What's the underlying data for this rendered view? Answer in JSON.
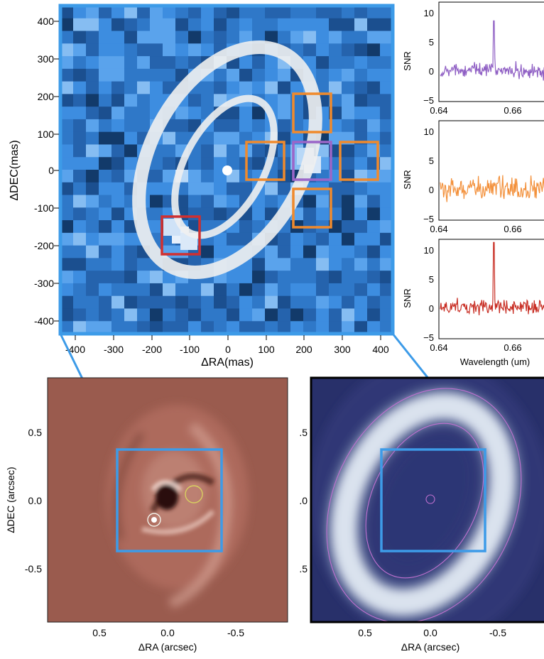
{
  "main_panel": {
    "xlabel": "ΔRA(mas)",
    "ylabel": "ΔDEC(mas)",
    "ticks": [
      400,
      300,
      200,
      100,
      0,
      -100,
      -200,
      -300,
      -400
    ],
    "x_tick_labels": [
      "-400",
      "-300",
      "-200",
      "-100",
      "0",
      "100",
      "200",
      "300",
      "400"
    ],
    "y_tick_labels": [
      "400",
      "300",
      "200",
      "100",
      "0",
      "-100",
      "-200",
      "-300",
      "-400"
    ],
    "colors": {
      "frame": "#3d9be8",
      "star": "#ffffff",
      "ring": "#f0f0f0"
    },
    "apertures": [
      {
        "id": "north",
        "color": "#f08a2c"
      },
      {
        "id": "west-inner",
        "color": "#f08a2c"
      },
      {
        "id": "center-target",
        "color": "#9b66c8"
      },
      {
        "id": "east-far",
        "color": "#f08a2c"
      },
      {
        "id": "south",
        "color": "#f08a2c"
      },
      {
        "id": "planet",
        "color": "#d03030"
      }
    ]
  },
  "spectra": [
    {
      "ylabel": "SNR",
      "xlabel": "",
      "color": "#8f5fc4",
      "y_ticks": [
        "10",
        "5",
        "0",
        "−5"
      ],
      "x_ticks": [
        "0.64",
        "0.66"
      ],
      "peak": 8,
      "noise": 0.6
    },
    {
      "ylabel": "SNR",
      "xlabel": "",
      "color": "#f3913c",
      "y_ticks": [
        "10",
        "5",
        "0",
        "−5"
      ],
      "x_ticks": [
        "0.64",
        "0.66"
      ],
      "peak": 0,
      "noise": 0.9
    },
    {
      "ylabel": "SNR",
      "xlabel": "Wavelength (um)",
      "color": "#c82d23",
      "y_ticks": [
        "10",
        "5",
        "0",
        "−5"
      ],
      "x_ticks": [
        "0.64",
        "0.66"
      ],
      "peak": 10.5,
      "noise": 0.6
    }
  ],
  "left_panel": {
    "xlabel": "ΔRA (arcsec)",
    "ylabel": "ΔDEC (arcsec)",
    "x_tick_labels": [
      "0.5",
      "0.0",
      "-0.5"
    ],
    "y_tick_labels": [
      "0.5",
      "0.0",
      "-0.5"
    ],
    "colors": {
      "background": "#9a5b4e",
      "circle_white": "#ffffff",
      "circle_yellow": "#d8d060"
    }
  },
  "right_panel": {
    "xlabel": "ΔRA (arcsec)",
    "x_tick_labels": [
      "0.5",
      "0.0",
      "-0.5"
    ],
    "y_tick_labels": [
      ".5",
      ".0",
      ".5"
    ],
    "colors": {
      "background": "#28306a",
      "ring": "#ffffff",
      "contour": "#c070d0"
    }
  }
}
